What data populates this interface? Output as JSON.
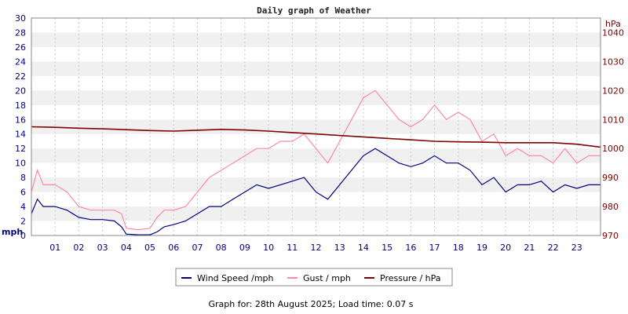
{
  "chart_data": {
    "type": "line",
    "title": "Daily graph of Weather",
    "left_axis": {
      "unit": "mph",
      "ylim": [
        0,
        30
      ],
      "ticks": [
        0,
        2,
        4,
        6,
        8,
        10,
        12,
        14,
        16,
        18,
        20,
        22,
        24,
        26,
        28,
        30
      ]
    },
    "right_axis": {
      "unit": "hPa",
      "ylim": [
        970,
        1045
      ],
      "ticks": [
        970,
        980,
        990,
        1000,
        1010,
        1020,
        1030,
        1040
      ]
    },
    "x_axis": {
      "range_hours": [
        0,
        24
      ],
      "tick_labels": [
        "01",
        "02",
        "03",
        "04",
        "05",
        "06",
        "07",
        "08",
        "09",
        "10",
        "11",
        "12",
        "13",
        "14",
        "15",
        "16",
        "17",
        "18",
        "19",
        "20",
        "21",
        "22",
        "23"
      ]
    },
    "grid": true,
    "series": [
      {
        "name": "Wind Speed /mph",
        "axis": "left",
        "color": "#00007f",
        "x": [
          0,
          0.25,
          0.5,
          1,
          1.5,
          2,
          2.5,
          3,
          3.5,
          3.8,
          4,
          4.5,
          5,
          5.3,
          5.6,
          6,
          6.5,
          7,
          7.5,
          8,
          8.5,
          9,
          9.5,
          10,
          10.5,
          11,
          11.5,
          12,
          12.5,
          13,
          13.5,
          14,
          14.5,
          15,
          15.5,
          16,
          16.5,
          17,
          17.5,
          18,
          18.5,
          19,
          19.5,
          20,
          20.5,
          21,
          21.5,
          22,
          22.5,
          23,
          23.5,
          24
        ],
        "y": [
          3,
          5,
          4,
          4,
          3.5,
          2.5,
          2.2,
          2.2,
          2,
          1.2,
          0.2,
          0.1,
          0.1,
          0.5,
          1.2,
          1.5,
          2,
          3,
          4,
          4,
          5,
          6,
          7,
          6.5,
          7,
          7.5,
          8,
          6,
          5,
          7,
          9,
          11,
          12,
          11,
          10,
          9.5,
          10,
          11,
          10,
          10,
          9,
          7,
          8,
          6,
          7,
          7,
          7.5,
          6,
          7,
          6.5,
          7,
          7
        ]
      },
      {
        "name": "Gust / mph",
        "axis": "left",
        "color": "#ff88aa",
        "x": [
          0,
          0.25,
          0.5,
          1,
          1.5,
          2,
          2.5,
          3,
          3.5,
          3.8,
          4,
          4.5,
          5,
          5.3,
          5.6,
          6,
          6.5,
          7,
          7.5,
          8,
          8.5,
          9,
          9.5,
          10,
          10.5,
          11,
          11.5,
          12,
          12.5,
          13,
          13.5,
          14,
          14.5,
          15,
          15.5,
          16,
          16.5,
          17,
          17.5,
          18,
          18.5,
          19,
          19.5,
          20,
          20.5,
          21,
          21.5,
          22,
          22.5,
          23,
          23.5,
          24
        ],
        "y": [
          6,
          9,
          7,
          7,
          6,
          4,
          3.5,
          3.5,
          3.5,
          3,
          1,
          0.8,
          1,
          2.5,
          3.5,
          3.5,
          4,
          6,
          8,
          9,
          10,
          11,
          12,
          12,
          13,
          13,
          14,
          12,
          10,
          13,
          16,
          19,
          20,
          18,
          16,
          15,
          16,
          18,
          16,
          17,
          16,
          13,
          14,
          11,
          12,
          11,
          11,
          10,
          12,
          10,
          11,
          11
        ]
      },
      {
        "name": "Pressure / hPa",
        "axis": "right",
        "color": "#7f0000",
        "x": [
          0,
          1,
          2,
          3,
          4,
          5,
          6,
          7,
          8,
          9,
          10,
          11,
          12,
          13,
          14,
          15,
          16,
          17,
          18,
          19,
          20,
          21,
          22,
          23,
          24
        ],
        "y": [
          1007.5,
          1007.3,
          1007,
          1006.8,
          1006.5,
          1006.2,
          1006,
          1006.3,
          1006.6,
          1006.4,
          1006,
          1005.5,
          1005,
          1004.5,
          1004,
          1003.5,
          1003,
          1002.5,
          1002.3,
          1002.2,
          1002,
          1002,
          1002,
          1001.5,
          1000.5
        ]
      }
    ]
  },
  "footer": "Graph for: 28th August 2025; Load time: 0.07 s"
}
